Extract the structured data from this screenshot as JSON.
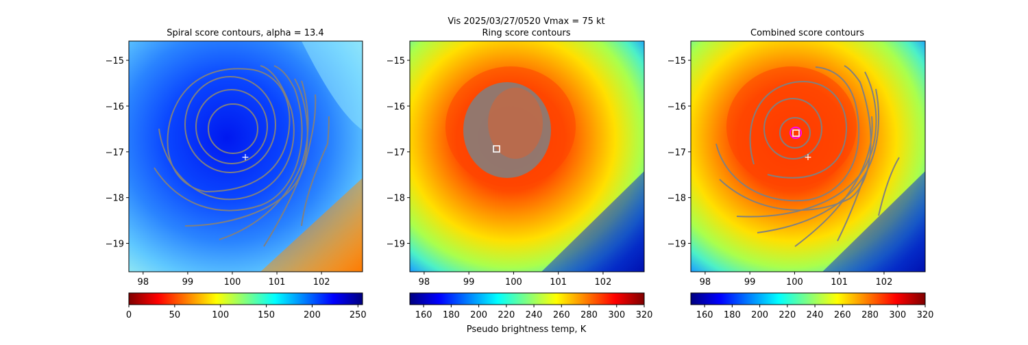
{
  "suptitle": "Vis  2025/03/27/0520    Vmax = 75 kt",
  "colorbar_label": "Pseudo brightness temp, K",
  "chart_data": [
    {
      "type": "heatmap",
      "title": "Spiral score contours, alpha = 13.4",
      "x_ticks": [
        "98",
        "99",
        "100",
        "101",
        "102"
      ],
      "y_ticks": [
        "−15",
        "−16",
        "−17",
        "−18",
        "−19"
      ],
      "xlim": [
        97.68,
        102.92
      ],
      "ylim": [
        -19.62,
        -14.58
      ],
      "colorbar": {
        "ticks": [
          "0",
          "50",
          "100",
          "150",
          "200",
          "250"
        ],
        "range": [
          0,
          255
        ],
        "colormap": "jet_r"
      },
      "marker": {
        "symbol": "+",
        "x": 100.27,
        "y": -17.1
      }
    },
    {
      "type": "heatmap",
      "title": "Ring score contours",
      "x_ticks": [
        "98",
        "99",
        "100",
        "101",
        "102"
      ],
      "y_ticks": [
        "−15",
        "−16",
        "−17",
        "−18",
        "−19"
      ],
      "xlim": [
        97.68,
        102.92
      ],
      "ylim": [
        -19.62,
        -14.58
      ],
      "colorbar": {
        "ticks": [
          "160",
          "180",
          "200",
          "220",
          "240",
          "260",
          "280",
          "300",
          "320"
        ],
        "range": [
          150,
          320
        ],
        "colormap": "jet"
      },
      "marker": {
        "symbol": "square",
        "x": 99.58,
        "y": -16.95
      }
    },
    {
      "type": "heatmap",
      "title": "Combined score contours",
      "x_ticks": [
        "98",
        "99",
        "100",
        "101",
        "102"
      ],
      "y_ticks": [
        "−15",
        "−16",
        "−17",
        "−18",
        "−19"
      ],
      "xlim": [
        97.68,
        102.92
      ],
      "ylim": [
        -19.62,
        -14.58
      ],
      "colorbar": {
        "ticks": [
          "160",
          "180",
          "200",
          "220",
          "240",
          "260",
          "280",
          "300",
          "320"
        ],
        "range": [
          150,
          320
        ],
        "colormap": "jet"
      },
      "marker": {
        "symbol": "square",
        "x": 100.03,
        "y": -16.6
      },
      "marker2": {
        "symbol": "+",
        "x": 100.27,
        "y": -17.1
      }
    }
  ],
  "colors": {
    "contour": "#808080",
    "cb_jet": [
      "#00007f",
      "#0000ff",
      "#0080ff",
      "#00ffff",
      "#80ff80",
      "#ffff00",
      "#ff8000",
      "#ff0000",
      "#7f0000"
    ],
    "cb_jet_r": [
      "#7f0000",
      "#ff0000",
      "#ff8000",
      "#ffff00",
      "#80ff80",
      "#00ffff",
      "#0080ff",
      "#0000ff",
      "#00007f"
    ],
    "spiral_bg": [
      "#0026ff",
      "#0a4cff",
      "#2a7fff",
      "#4fb0ff",
      "#8fe6ff"
    ],
    "warm_bg": [
      "#e62600",
      "#ff4a00",
      "#ff8a00",
      "#ffd400",
      "#c8ff36",
      "#58ffa6",
      "#20d8ff"
    ]
  }
}
